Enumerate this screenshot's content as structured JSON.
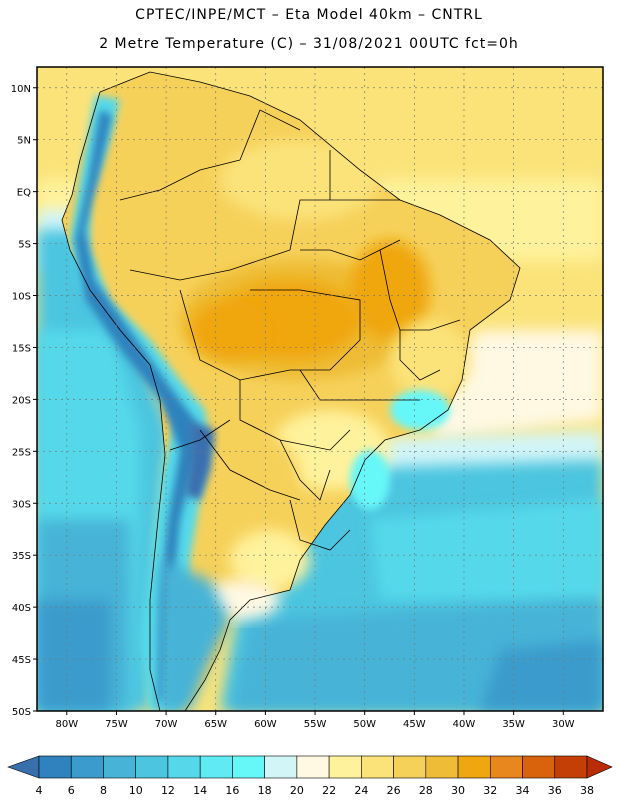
{
  "header": {
    "line1": "CPTEC/INPE/MCT –  Eta Model 40km – CNTRL",
    "line2": "2 Metre Temperature (C) – 31/08/2021 00UTC fct=0h"
  },
  "map": {
    "lat_labels": [
      "10N",
      "5N",
      "EQ",
      "5S",
      "10S",
      "15S",
      "20S",
      "25S",
      "30S",
      "35S",
      "40S",
      "45S",
      "50S"
    ],
    "lat_values": [
      10,
      5,
      0,
      -5,
      -10,
      -15,
      -20,
      -25,
      -30,
      -35,
      -40,
      -45,
      -50
    ],
    "lon_labels": [
      "80W",
      "75W",
      "70W",
      "65W",
      "60W",
      "55W",
      "50W",
      "45W",
      "40W",
      "35W",
      "30W"
    ],
    "lon_values": [
      -80,
      -75,
      -70,
      -65,
      -60,
      -55,
      -50,
      -45,
      -40,
      -35,
      -30
    ],
    "lat_range": [
      -50,
      12
    ],
    "lon_range": [
      -83,
      -26
    ]
  },
  "colorbar": {
    "ticks": [
      "4",
      "6",
      "8",
      "10",
      "12",
      "14",
      "16",
      "18",
      "20",
      "22",
      "24",
      "26",
      "28",
      "30",
      "32",
      "34",
      "36",
      "38"
    ],
    "colors": [
      "#3a6fae",
      "#2f82bd",
      "#3b9bcc",
      "#46b3d7",
      "#4cc5e0",
      "#55d9ea",
      "#60eaf3",
      "#66f7f9",
      "#d2f5f8",
      "#fff8e2",
      "#fff29c",
      "#fbe37a",
      "#f6d15a",
      "#eebc36",
      "#f0a60f",
      "#e8871d",
      "#d9620c",
      "#c43f06",
      "#b82d08"
    ],
    "under_color": "#3a6fae",
    "over_color": "#b82d08"
  }
}
